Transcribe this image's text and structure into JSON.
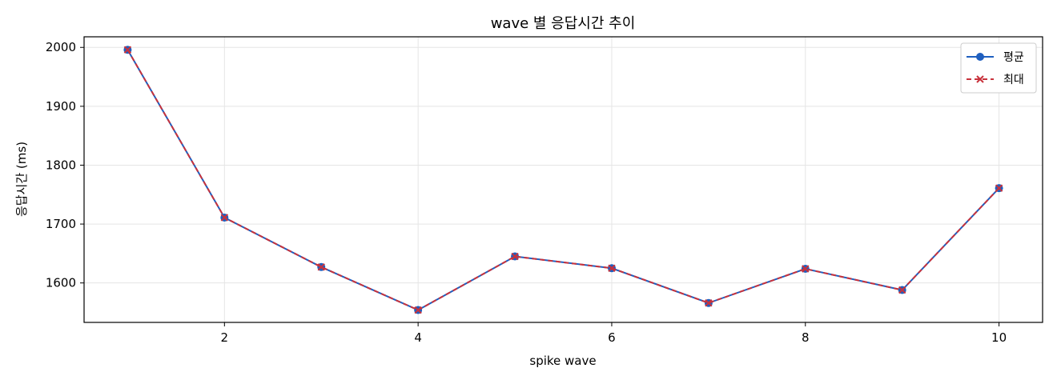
{
  "chart_data": {
    "type": "line",
    "title": "wave 별 응답시간 추이",
    "xlabel": "spike wave",
    "ylabel": "응답시간 (ms)",
    "x": [
      1,
      2,
      3,
      4,
      5,
      6,
      7,
      8,
      9,
      10
    ],
    "xlim": [
      0.55,
      10.45
    ],
    "ylim": [
      1533,
      2018
    ],
    "xticks": [
      2,
      4,
      6,
      8,
      10
    ],
    "yticks": [
      1600,
      1700,
      1800,
      1900,
      2000
    ],
    "grid": true,
    "legend_position": "top-right",
    "series": [
      {
        "name": "평균",
        "color": "#1f5fbf",
        "marker": "circle",
        "linestyle": "solid",
        "values": [
          1996,
          1711,
          1627,
          1554,
          1645,
          1625,
          1566,
          1624,
          1588,
          1761
        ]
      },
      {
        "name": "최대",
        "color": "#c8323c",
        "marker": "x",
        "linestyle": "dashed",
        "values": [
          1996,
          1711,
          1627,
          1554,
          1645,
          1625,
          1566,
          1624,
          1588,
          1761
        ]
      }
    ]
  }
}
